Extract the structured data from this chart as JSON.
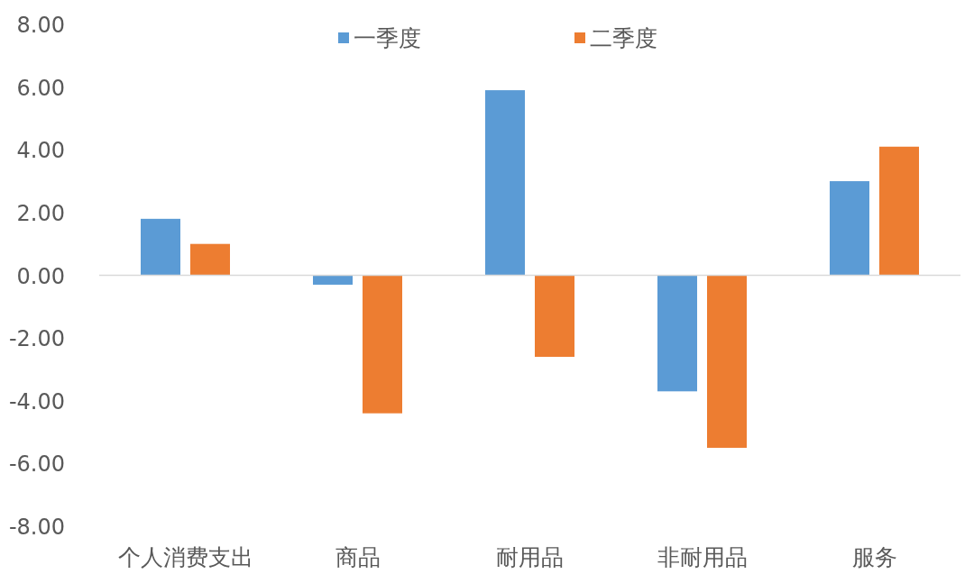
{
  "chart_data": {
    "type": "bar",
    "categories": [
      "个人消费支出",
      "商品",
      "耐用品",
      "非耐用品",
      "服务"
    ],
    "series": [
      {
        "name": "一季度",
        "color": "#5b9bd5",
        "values": [
          1.8,
          -0.3,
          5.9,
          -3.7,
          3.0
        ]
      },
      {
        "name": "二季度",
        "color": "#ed7d31",
        "values": [
          1.0,
          -4.4,
          -2.6,
          -5.5,
          4.1
        ]
      }
    ],
    "ylim": [
      -8,
      8
    ],
    "yticks": [
      {
        "value": -8,
        "label": "-8.00"
      },
      {
        "value": -6,
        "label": "-6.00"
      },
      {
        "value": -4,
        "label": "-4.00"
      },
      {
        "value": -2,
        "label": "-2.00"
      },
      {
        "value": 0,
        "label": "0.00"
      },
      {
        "value": 2,
        "label": "2.00"
      },
      {
        "value": 4,
        "label": "4.00"
      },
      {
        "value": 6,
        "label": "6.00"
      },
      {
        "value": 8,
        "label": "8.00"
      }
    ],
    "legend": "top"
  }
}
